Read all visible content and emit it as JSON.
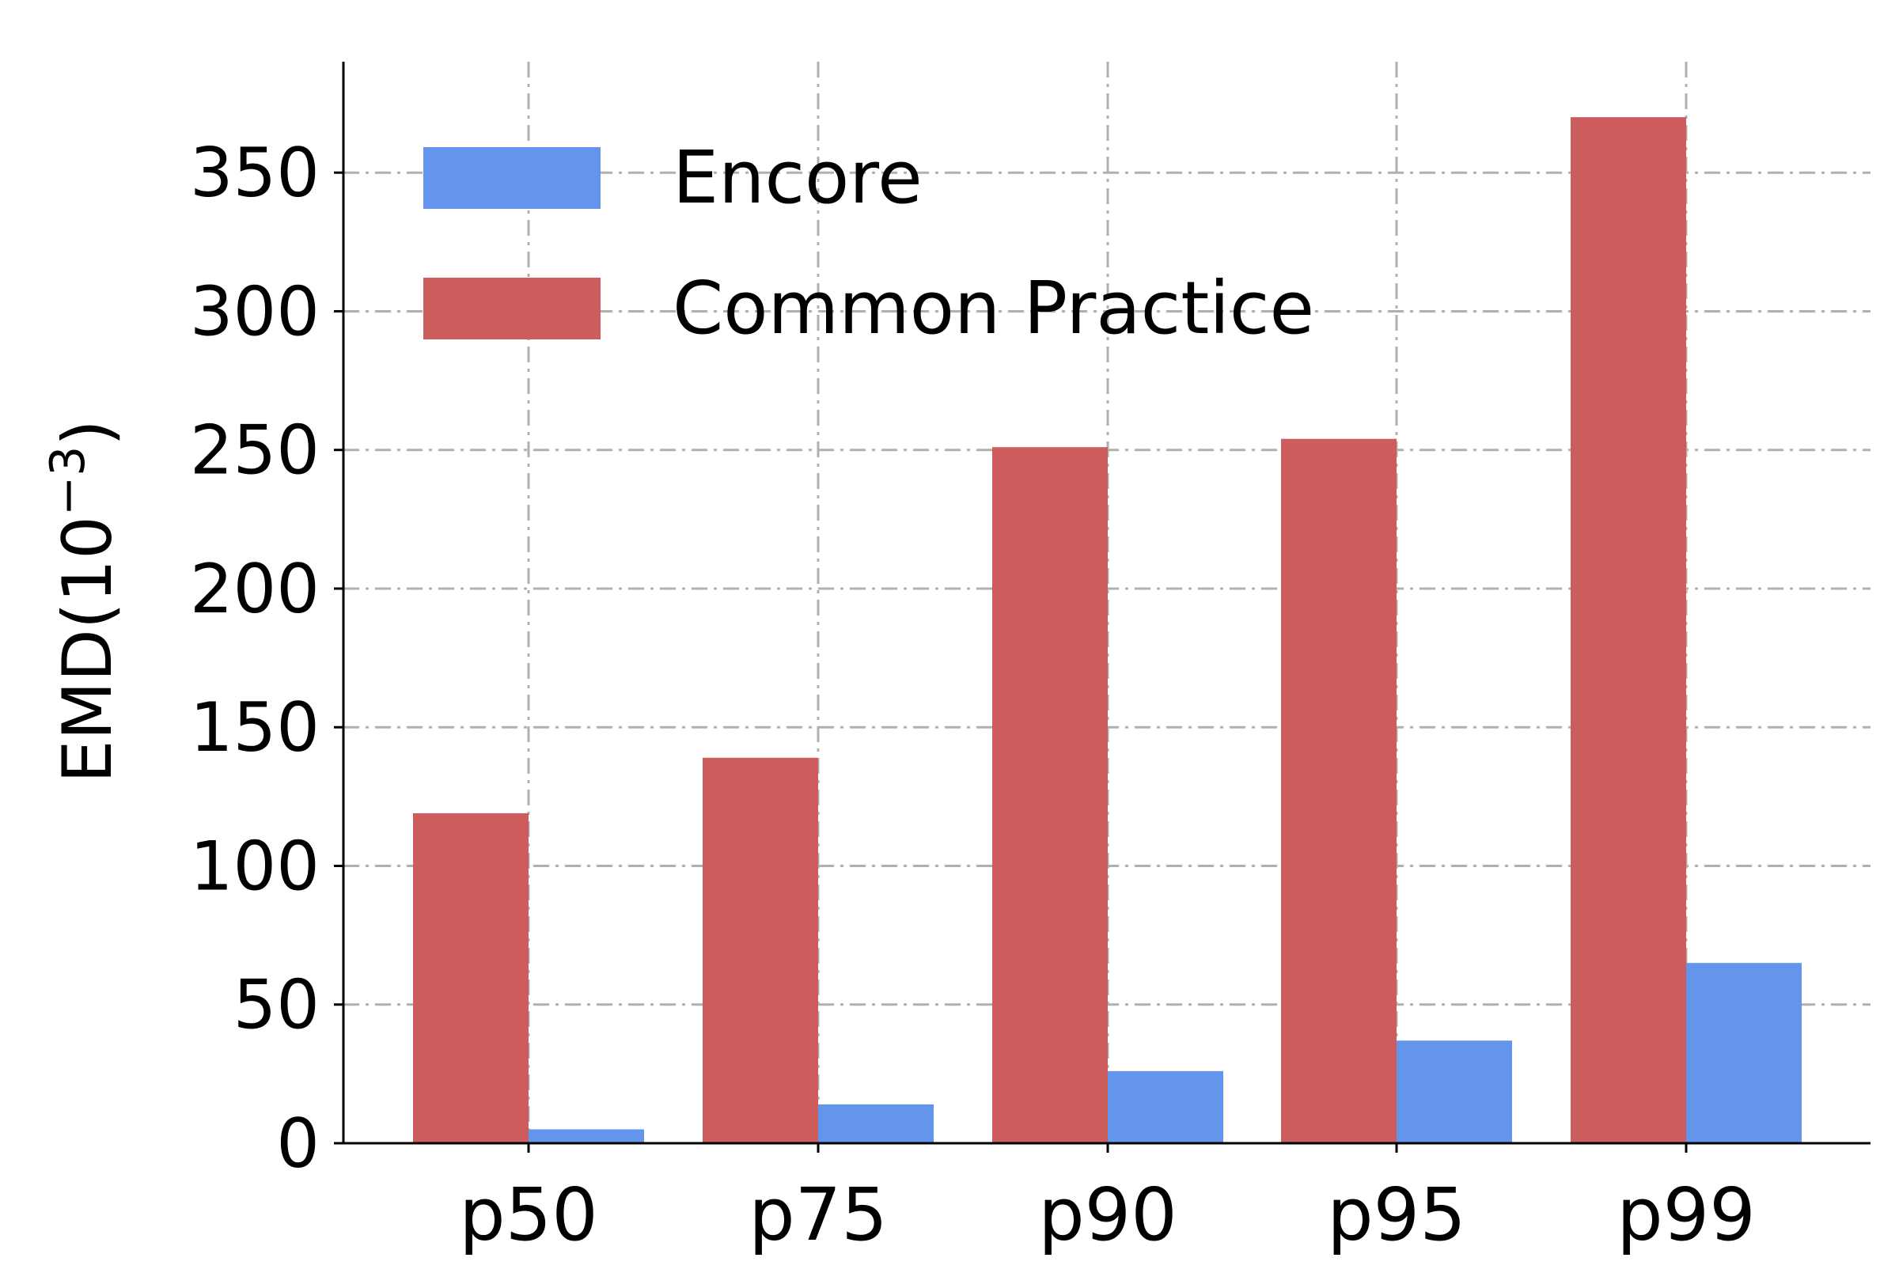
{
  "chart_data": {
    "type": "bar",
    "categories": [
      "p50",
      "p75",
      "p90",
      "p95",
      "p99"
    ],
    "series": [
      {
        "name": "Encore",
        "values": [
          5,
          14,
          26,
          37,
          65
        ],
        "color": "#6495ED"
      },
      {
        "name": "Common Practice",
        "values": [
          119,
          139,
          251,
          254,
          370
        ],
        "color": "#CD5C5C"
      }
    ],
    "title": "",
    "xlabel": "",
    "ylabel": "EMD(10",
    "ylabel_superscript": "−3",
    "ylabel_close": ")",
    "ylim": [
      0,
      390
    ],
    "yticks": [
      0,
      50,
      100,
      150,
      200,
      250,
      300,
      350
    ],
    "grid": true,
    "legend_position": "top-left"
  }
}
